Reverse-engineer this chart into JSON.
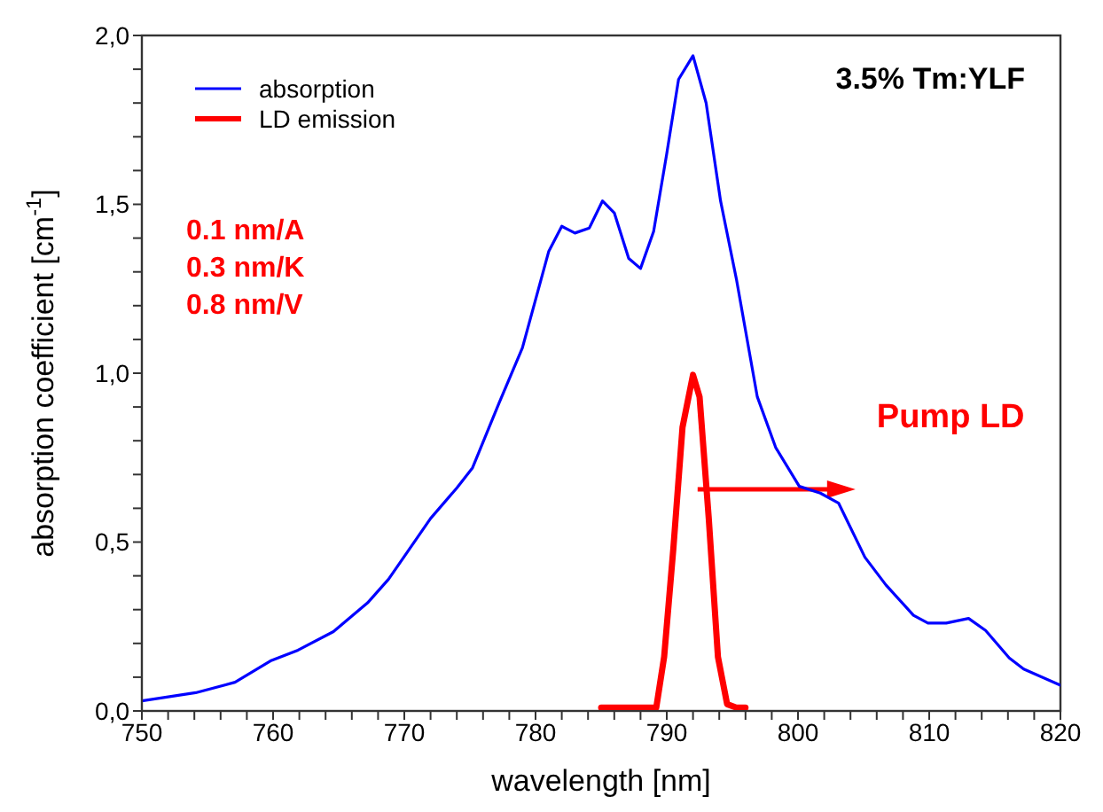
{
  "chart_data": {
    "type": "line",
    "xlabel": "wavelength [nm]",
    "ylabel": "absorption coefficient [cm$^{-1}$]",
    "xlim": [
      750,
      820
    ],
    "ylim": [
      0,
      2
    ],
    "xticks": [
      750,
      {
        "value": 752,
        "label": null
      },
      {
        "value": 754,
        "label": null
      },
      {
        "value": 756,
        "label": null
      },
      {
        "value": 758,
        "label": null
      },
      760,
      {
        "value": 762,
        "label": null
      },
      {
        "value": 764,
        "label": null
      },
      {
        "value": 766,
        "label": null
      },
      {
        "value": 768,
        "label": null
      },
      770,
      {
        "value": 772,
        "label": null
      },
      {
        "value": 774,
        "label": null
      },
      {
        "value": 776,
        "label": null
      },
      {
        "value": 778,
        "label": null
      },
      780,
      {
        "value": 782,
        "label": null
      },
      {
        "value": 784,
        "label": null
      },
      {
        "value": 786,
        "label": null
      },
      {
        "value": 788,
        "label": null
      },
      790,
      {
        "value": 792,
        "label": null
      },
      {
        "value": 794,
        "label": null
      },
      {
        "value": 796,
        "label": null
      },
      {
        "value": 798,
        "label": null
      },
      800,
      {
        "value": 802,
        "label": null
      },
      {
        "value": 804,
        "label": null
      },
      {
        "value": 806,
        "label": null
      },
      {
        "value": 808,
        "label": null
      },
      810,
      {
        "value": 812,
        "label": null
      },
      {
        "value": 814,
        "label": null
      },
      {
        "value": 816,
        "label": null
      },
      {
        "value": 818,
        "label": null
      },
      820
    ],
    "yticks": [
      {
        "value": 0,
        "label": "0,0"
      },
      {
        "value": 0.1,
        "label": null
      },
      {
        "value": 0.2,
        "label": null
      },
      {
        "value": 0.3,
        "label": null
      },
      {
        "value": 0.4,
        "label": null
      },
      {
        "value": 0.5,
        "label": "0,5"
      },
      {
        "value": 0.6,
        "label": null
      },
      {
        "value": 0.7,
        "label": null
      },
      {
        "value": 0.8,
        "label": null
      },
      {
        "value": 0.9,
        "label": null
      },
      {
        "value": 1,
        "label": "1,0"
      },
      {
        "value": 1.1,
        "label": null
      },
      {
        "value": 1.2,
        "label": null
      },
      {
        "value": 1.3,
        "label": null
      },
      {
        "value": 1.4,
        "label": null
      },
      {
        "value": 1.5,
        "label": "1,5"
      },
      {
        "value": 1.6,
        "label": null
      },
      {
        "value": 1.7,
        "label": null
      },
      {
        "value": 1.8,
        "label": null
      },
      {
        "value": 1.9,
        "label": null
      },
      {
        "value": 2,
        "label": "2,0"
      }
    ],
    "grid": false,
    "legend": "top left",
    "marker": "none",
    "line_style": "solid",
    "annotations": [
      "3.5% Tm:YLF",
      "0.1 nm/A",
      "0.3 nm/K",
      "0.8 nm/V",
      "Pump LD"
    ],
    "series": [
      {
        "name": "absorption",
        "color": "#0000ff",
        "x": [
          750,
          754.1,
          757.1,
          759.8,
          761.9,
          764.6,
          767.2,
          768.8,
          772,
          774,
          775.2,
          777.2,
          779,
          781,
          782,
          783,
          784.1,
          785.1,
          786,
          787.1,
          788,
          789,
          790,
          790.9,
          792,
          793,
          794.1,
          795.3,
          796.9,
          798.3,
          800.1,
          801.7,
          803.1,
          805.1,
          806.7,
          808.8,
          809.9,
          811.3,
          813,
          814.3,
          816.1,
          817.2,
          820
        ],
        "values": [
          0.03,
          0.054,
          0.085,
          0.148,
          0.18,
          0.235,
          0.32,
          0.39,
          0.57,
          0.66,
          0.72,
          0.91,
          1.075,
          1.36,
          1.435,
          1.415,
          1.43,
          1.51,
          1.475,
          1.34,
          1.31,
          1.42,
          1.65,
          1.87,
          1.94,
          1.8,
          1.51,
          1.28,
          0.93,
          0.78,
          0.665,
          0.645,
          0.615,
          0.455,
          0.373,
          0.283,
          0.26,
          0.26,
          0.274,
          0.238,
          0.157,
          0.124,
          0.076
        ]
      },
      {
        "name": "LD emission",
        "color": "#ff0000",
        "x": [
          785,
          786,
          787,
          788,
          789.2,
          789.8,
          790.5,
          791.2,
          792,
          792.5,
          793.2,
          793.9,
          794.6,
          795.3,
          796
        ],
        "values": [
          0.01,
          0.01,
          0.01,
          0.01,
          0.01,
          0.16,
          0.48,
          0.84,
          0.995,
          0.93,
          0.57,
          0.16,
          0.02,
          0.01,
          0.01
        ]
      }
    ]
  }
}
